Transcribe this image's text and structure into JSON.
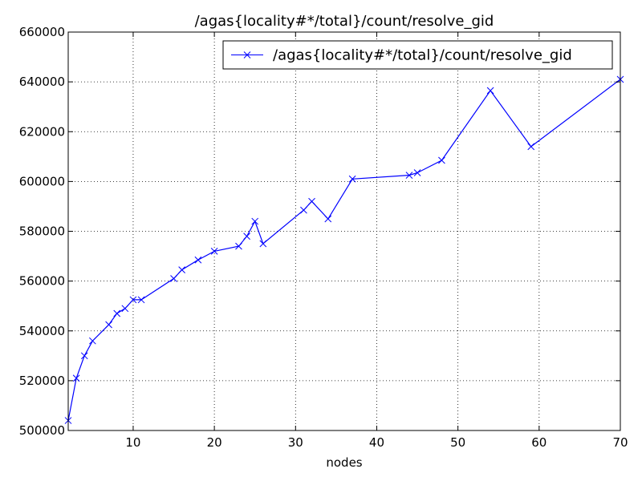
{
  "chart_data": {
    "type": "line",
    "title": "/agas{locality#*/total}/count/resolve_gid",
    "xlabel": "nodes",
    "ylabel": "",
    "xlim": [
      2,
      70
    ],
    "ylim": [
      500000,
      660000
    ],
    "xticks": [
      10,
      20,
      30,
      40,
      50,
      60,
      70
    ],
    "yticks": [
      500000,
      520000,
      540000,
      560000,
      580000,
      600000,
      620000,
      640000,
      660000
    ],
    "grid": true,
    "legend_position": "top-right",
    "series": [
      {
        "name": "/agas{locality#*/total}/count/resolve_gid",
        "color": "#0000ff",
        "marker": "x",
        "x": [
          2,
          3,
          4,
          5,
          7,
          8,
          9,
          10,
          11,
          15,
          16,
          18,
          20,
          23,
          24,
          25,
          26,
          31,
          32,
          34,
          37,
          44,
          45,
          48,
          54,
          59,
          70
        ],
        "y": [
          504000,
          521000,
          530000,
          536000,
          542500,
          547000,
          549000,
          552500,
          552500,
          561000,
          564500,
          568500,
          572000,
          574000,
          578000,
          584000,
          575000,
          588500,
          592000,
          585000,
          601000,
          602500,
          603500,
          608500,
          636500,
          614000,
          641000
        ]
      }
    ]
  }
}
